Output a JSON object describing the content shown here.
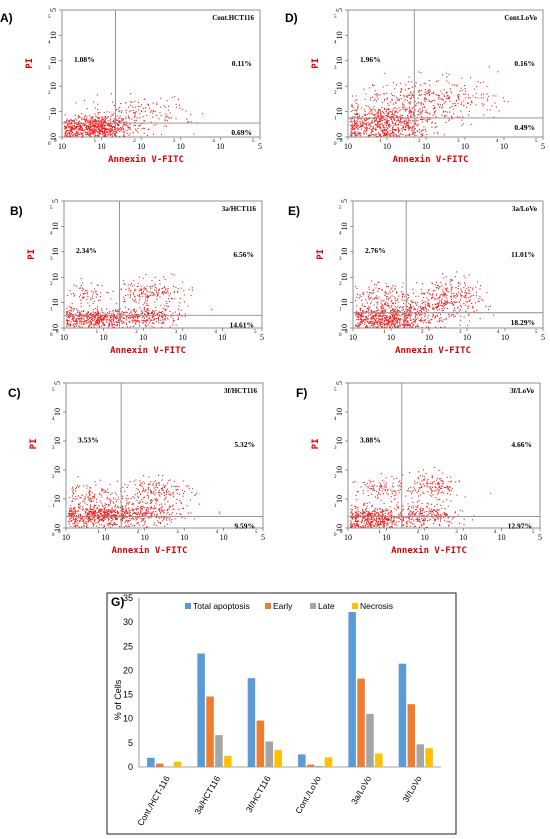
{
  "chart_data": [
    {
      "type": "scatter",
      "panel_label": "A)",
      "title": "Cont.HCT116",
      "xlabel": "Annexin V-FITC",
      "ylabel": "PI",
      "x_ticks": [
        "10",
        "10",
        "10",
        "10",
        "10",
        "5"
      ],
      "y_ticks": [
        "10",
        "10",
        "10",
        "10",
        "10",
        "5"
      ],
      "quadrants": {
        "upper_left": "1.08%",
        "upper_right": "0.11%",
        "lower_right": "0.69%"
      },
      "populations": [
        {
          "cx": 0.8,
          "cy": 0.4,
          "sx": 0.5,
          "sy": 0.22,
          "n": 700
        },
        {
          "cx": 1.9,
          "cy": 0.9,
          "sx": 0.7,
          "sy": 0.35,
          "n": 160
        }
      ]
    },
    {
      "type": "scatter",
      "panel_label": "D)",
      "title": "Cont.LoVo",
      "xlabel": "Annexin V-FITC",
      "ylabel": "PI",
      "x_ticks": [
        "10",
        "10",
        "10",
        "10",
        "10",
        "5"
      ],
      "y_ticks": [
        "10",
        "10",
        "10",
        "10",
        "10",
        "5"
      ],
      "quadrants": {
        "upper_left": "1.96%",
        "upper_right": "0.16%",
        "lower_right": "0.49%"
      },
      "populations": [
        {
          "cx": 0.9,
          "cy": 0.5,
          "sx": 0.6,
          "sy": 0.35,
          "n": 650
        },
        {
          "cx": 1.8,
          "cy": 1.4,
          "sx": 0.7,
          "sy": 0.45,
          "n": 320
        },
        {
          "cx": 3.0,
          "cy": 1.6,
          "sx": 0.6,
          "sy": 0.4,
          "n": 80
        }
      ]
    },
    {
      "type": "scatter",
      "panel_label": "B)",
      "title": "3a/HCT116",
      "xlabel": "Annexin V-FITC",
      "ylabel": "PI",
      "x_ticks": [
        "10",
        "10",
        "10",
        "10",
        "10",
        "5"
      ],
      "y_ticks": [
        "10",
        "10",
        "10",
        "10",
        "10",
        "5"
      ],
      "quadrants": {
        "upper_left": "2.34%",
        "upper_right": "6.56%",
        "lower_right": "14.61%"
      },
      "populations": [
        {
          "cx": 0.8,
          "cy": 0.4,
          "sx": 0.5,
          "sy": 0.2,
          "n": 500
        },
        {
          "cx": 2.2,
          "cy": 0.5,
          "sx": 0.4,
          "sy": 0.2,
          "n": 220
        },
        {
          "cx": 2.2,
          "cy": 1.45,
          "sx": 0.45,
          "sy": 0.25,
          "n": 180
        },
        {
          "cx": 0.6,
          "cy": 1.4,
          "sx": 0.25,
          "sy": 0.2,
          "n": 60
        }
      ]
    },
    {
      "type": "scatter",
      "panel_label": "E)",
      "title": "3a/LoVo",
      "xlabel": "Annexin V-FITC",
      "ylabel": "PI",
      "x_ticks": [
        "10",
        "10",
        "10",
        "10",
        "10",
        "5"
      ],
      "y_ticks": [
        "10",
        "10",
        "10",
        "10",
        "10",
        "5"
      ],
      "quadrants": {
        "upper_left": "2.76%",
        "upper_right": "11.01%",
        "lower_right": "18.29%"
      },
      "populations": [
        {
          "cx": 0.8,
          "cy": 0.4,
          "sx": 0.5,
          "sy": 0.25,
          "n": 550
        },
        {
          "cx": 2.0,
          "cy": 0.7,
          "sx": 0.6,
          "sy": 0.3,
          "n": 260
        },
        {
          "cx": 2.6,
          "cy": 1.35,
          "sx": 0.4,
          "sy": 0.3,
          "n": 200
        },
        {
          "cx": 0.8,
          "cy": 1.3,
          "sx": 0.35,
          "sy": 0.25,
          "n": 120
        }
      ]
    },
    {
      "type": "scatter",
      "panel_label": "C)",
      "title": "3f/HCT116",
      "xlabel": "Annexin V-FITC",
      "ylabel": "PI",
      "x_ticks": [
        "10",
        "10",
        "10",
        "10",
        "10",
        "5"
      ],
      "y_ticks": [
        "10",
        "10",
        "10",
        "10",
        "10",
        "5"
      ],
      "quadrants": {
        "upper_left": "3.53%",
        "upper_right": "5.32%",
        "lower_right": "9.59%"
      },
      "populations": [
        {
          "cx": 0.9,
          "cy": 0.45,
          "sx": 0.6,
          "sy": 0.2,
          "n": 600
        },
        {
          "cx": 2.1,
          "cy": 0.5,
          "sx": 0.5,
          "sy": 0.2,
          "n": 200
        },
        {
          "cx": 2.3,
          "cy": 1.3,
          "sx": 0.45,
          "sy": 0.22,
          "n": 170
        },
        {
          "cx": 0.7,
          "cy": 1.15,
          "sx": 0.4,
          "sy": 0.2,
          "n": 120
        }
      ]
    },
    {
      "type": "scatter",
      "panel_label": "F)",
      "title": "3f/LoVo",
      "xlabel": "Annexin V-FITC",
      "ylabel": "PI",
      "x_ticks": [
        "10",
        "10",
        "10",
        "10",
        "10",
        "5"
      ],
      "y_ticks": [
        "10",
        "10",
        "10",
        "10",
        "10",
        "5"
      ],
      "quadrants": {
        "upper_left": "3.88%",
        "upper_right": "4.66%",
        "lower_right": "12.97%"
      },
      "populations": [
        {
          "cx": 0.7,
          "cy": 0.35,
          "sx": 0.45,
          "sy": 0.2,
          "n": 450
        },
        {
          "cx": 2.0,
          "cy": 0.45,
          "sx": 0.45,
          "sy": 0.2,
          "n": 220
        },
        {
          "cx": 2.2,
          "cy": 1.45,
          "sx": 0.35,
          "sy": 0.25,
          "n": 150
        },
        {
          "cx": 0.8,
          "cy": 1.35,
          "sx": 0.3,
          "sy": 0.2,
          "n": 100
        }
      ]
    },
    {
      "type": "bar",
      "panel_label": "G)",
      "categories": [
        "Cont./HCT-116",
        "3a/HCT116",
        "3f/HCT116",
        "Cont./LoVo",
        "3a/LoVo",
        "3f/LoVo"
      ],
      "series": [
        {
          "name": "Total apoptosis",
          "color": "#5b9bd5",
          "values": [
            1.9,
            23.5,
            18.4,
            2.6,
            32.1,
            21.4
          ]
        },
        {
          "name": "Early",
          "color": "#ed7d31",
          "values": [
            0.7,
            14.6,
            9.6,
            0.5,
            18.3,
            13.0
          ]
        },
        {
          "name": "Late",
          "color": "#a5a5a5",
          "values": [
            0.1,
            6.6,
            5.3,
            0.2,
            11.0,
            4.7
          ]
        },
        {
          "name": "Necrosis",
          "color": "#ffc000",
          "values": [
            1.1,
            2.3,
            3.5,
            2.0,
            2.8,
            3.9
          ]
        }
      ],
      "ylabel": "% of Cells",
      "ylim": [
        0,
        35
      ],
      "yticks": [
        "0",
        "5",
        "10",
        "15",
        "20",
        "25",
        "30",
        "35"
      ],
      "legend": "top"
    }
  ],
  "colors": {
    "dots": "#ee1c1c",
    "axis_label": "#e00000",
    "gate": "#8a8a8a"
  }
}
